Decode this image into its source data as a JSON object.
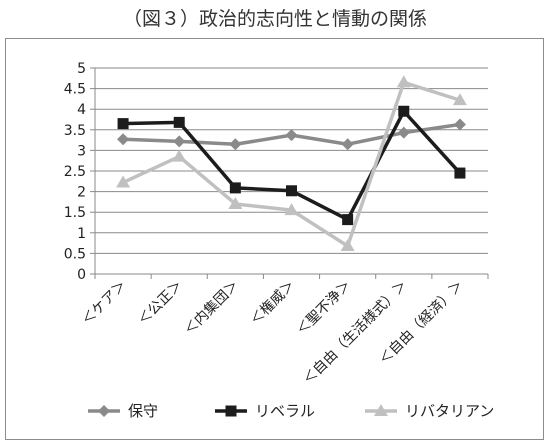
{
  "chart_data": {
    "type": "line",
    "title": "（図３）政治的志向性と情動の関係",
    "categories": [
      "＜ケア＞",
      "＜公正＞",
      "＜内集団＞",
      "＜権威＞",
      "＜聖不浄＞",
      "＜自由（生活様式）＞",
      "＜自由（経済）＞"
    ],
    "ylim": [
      0,
      5
    ],
    "yticks": [
      "0",
      "0.5",
      "1",
      "1.5",
      "2",
      "2.5",
      "3",
      "3.5",
      "4",
      "4.5",
      "5"
    ],
    "grid": true,
    "legend_position": "bottom",
    "series": [
      {
        "name": "保守",
        "color": "#8a8a8a",
        "marker": "diamond",
        "values": [
          3.27,
          3.22,
          3.15,
          3.37,
          3.15,
          3.43,
          3.63
        ]
      },
      {
        "name": "リベラル",
        "color": "#1c1c1c",
        "marker": "square",
        "values": [
          3.65,
          3.68,
          2.09,
          2.02,
          1.32,
          3.95,
          2.45
        ]
      },
      {
        "name": "リバタリアン",
        "color": "#c0c0c0",
        "marker": "triangle",
        "values": [
          2.22,
          2.85,
          1.7,
          1.55,
          0.68,
          4.65,
          4.22
        ]
      }
    ]
  }
}
